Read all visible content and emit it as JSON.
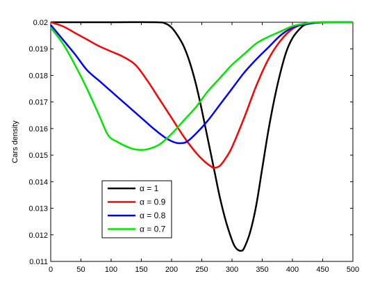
{
  "chart_data": {
    "type": "line",
    "title": "",
    "xlabel": "",
    "ylabel": "Cars density",
    "xlim": [
      0,
      500
    ],
    "ylim": [
      0.011,
      0.02
    ],
    "xticks": [
      0,
      50,
      100,
      150,
      200,
      250,
      300,
      350,
      400,
      450,
      500
    ],
    "yticks": [
      0.011,
      0.012,
      0.013,
      0.014,
      0.015,
      0.016,
      0.017,
      0.018,
      0.019,
      0.02
    ],
    "xtick_labels": [
      "0",
      "50",
      "100",
      "150",
      "200",
      "250",
      "300",
      "350",
      "400",
      "450",
      "500"
    ],
    "ytick_labels": [
      "0.011",
      "0.012",
      "0.013",
      "0.014",
      "0.015",
      "0.016",
      "0.017",
      "0.018",
      "0.019",
      "0.02"
    ],
    "grid": false,
    "legend_position": "lower-left",
    "series": [
      {
        "name": "α = 1",
        "color": "#000000",
        "points": [
          [
            0,
            0.02
          ],
          [
            100,
            0.02
          ],
          [
            175,
            0.02
          ],
          [
            190,
            0.01995
          ],
          [
            200,
            0.0198
          ],
          [
            210,
            0.0195
          ],
          [
            220,
            0.0191
          ],
          [
            230,
            0.0185
          ],
          [
            240,
            0.0177
          ],
          [
            250,
            0.0167
          ],
          [
            260,
            0.0156
          ],
          [
            270,
            0.0145
          ],
          [
            280,
            0.0134
          ],
          [
            290,
            0.0125
          ],
          [
            300,
            0.0118
          ],
          [
            305,
            0.01155
          ],
          [
            310,
            0.01143
          ],
          [
            315,
            0.0114
          ],
          [
            320,
            0.0115
          ],
          [
            330,
            0.0121
          ],
          [
            340,
            0.0131
          ],
          [
            350,
            0.0145
          ],
          [
            360,
            0.0159
          ],
          [
            370,
            0.0171
          ],
          [
            380,
            0.0181
          ],
          [
            390,
            0.0189
          ],
          [
            400,
            0.0194
          ],
          [
            410,
            0.0197
          ],
          [
            420,
            0.0199
          ],
          [
            435,
            0.01997
          ],
          [
            450,
            0.02
          ],
          [
            500,
            0.02
          ]
        ]
      },
      {
        "name": "α = 0.9",
        "color": "#ff0000",
        "points": [
          [
            0,
            0.02
          ],
          [
            20,
            0.01985
          ],
          [
            40,
            0.0196
          ],
          [
            60,
            0.01935
          ],
          [
            80,
            0.0191
          ],
          [
            100,
            0.0189
          ],
          [
            120,
            0.0187
          ],
          [
            140,
            0.0184
          ],
          [
            160,
            0.0178
          ],
          [
            180,
            0.0171
          ],
          [
            200,
            0.0164
          ],
          [
            220,
            0.0157
          ],
          [
            240,
            0.0151
          ],
          [
            255,
            0.01475
          ],
          [
            265,
            0.01458
          ],
          [
            270,
            0.01452
          ],
          [
            280,
            0.0146
          ],
          [
            290,
            0.0149
          ],
          [
            300,
            0.0153
          ],
          [
            320,
            0.0164
          ],
          [
            340,
            0.0176
          ],
          [
            360,
            0.0186
          ],
          [
            380,
            0.0193
          ],
          [
            400,
            0.01975
          ],
          [
            420,
            0.01993
          ],
          [
            440,
            0.01999
          ],
          [
            460,
            0.02
          ],
          [
            500,
            0.02
          ]
        ]
      },
      {
        "name": "α = 0.8",
        "color": "#0000ff",
        "points": [
          [
            0,
            0.0199
          ],
          [
            20,
            0.01935
          ],
          [
            40,
            0.0188
          ],
          [
            60,
            0.0182
          ],
          [
            80,
            0.0178
          ],
          [
            95,
            0.0175
          ],
          [
            110,
            0.0172
          ],
          [
            130,
            0.0168
          ],
          [
            150,
            0.0164
          ],
          [
            170,
            0.016
          ],
          [
            190,
            0.01565
          ],
          [
            205,
            0.01548
          ],
          [
            215,
            0.01545
          ],
          [
            225,
            0.0155
          ],
          [
            240,
            0.0158
          ],
          [
            260,
            0.0163
          ],
          [
            280,
            0.0169
          ],
          [
            300,
            0.0175
          ],
          [
            320,
            0.0181
          ],
          [
            340,
            0.0186
          ],
          [
            360,
            0.01905
          ],
          [
            380,
            0.0195
          ],
          [
            400,
            0.0198
          ],
          [
            420,
            0.01993
          ],
          [
            440,
            0.01998
          ],
          [
            460,
            0.02
          ],
          [
            500,
            0.02
          ]
        ]
      },
      {
        "name": "α = 0.7",
        "color": "#00e600",
        "points": [
          [
            0,
            0.0198
          ],
          [
            20,
            0.0192
          ],
          [
            40,
            0.0184
          ],
          [
            60,
            0.0175
          ],
          [
            80,
            0.0165
          ],
          [
            95,
            0.01575
          ],
          [
            110,
            0.0155
          ],
          [
            130,
            0.01528
          ],
          [
            145,
            0.0152
          ],
          [
            160,
            0.01522
          ],
          [
            180,
            0.0154
          ],
          [
            200,
            0.0158
          ],
          [
            220,
            0.0163
          ],
          [
            240,
            0.0168
          ],
          [
            260,
            0.0174
          ],
          [
            280,
            0.0179
          ],
          [
            300,
            0.0184
          ],
          [
            320,
            0.0188
          ],
          [
            340,
            0.0192
          ],
          [
            360,
            0.01945
          ],
          [
            380,
            0.01965
          ],
          [
            400,
            0.01985
          ],
          [
            420,
            0.01995
          ],
          [
            440,
            0.02
          ],
          [
            500,
            0.02
          ]
        ]
      }
    ]
  }
}
